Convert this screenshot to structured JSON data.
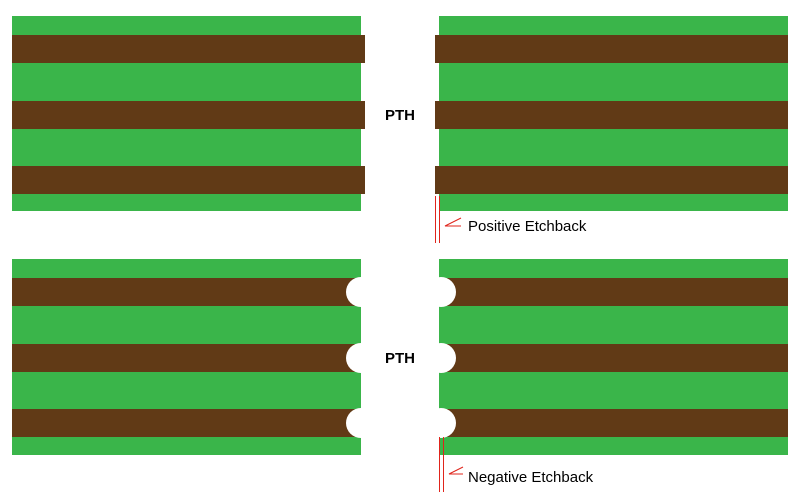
{
  "colors": {
    "laminate": "#3ab54a",
    "copper": "#613a16",
    "background": "#ffffff",
    "marker": "#e0241b"
  },
  "top_panel": {
    "hole_label": "PTH",
    "callout": "Positive Etchback"
  },
  "bottom_panel": {
    "hole_label": "PTH",
    "callout": "Negative Etchback"
  }
}
